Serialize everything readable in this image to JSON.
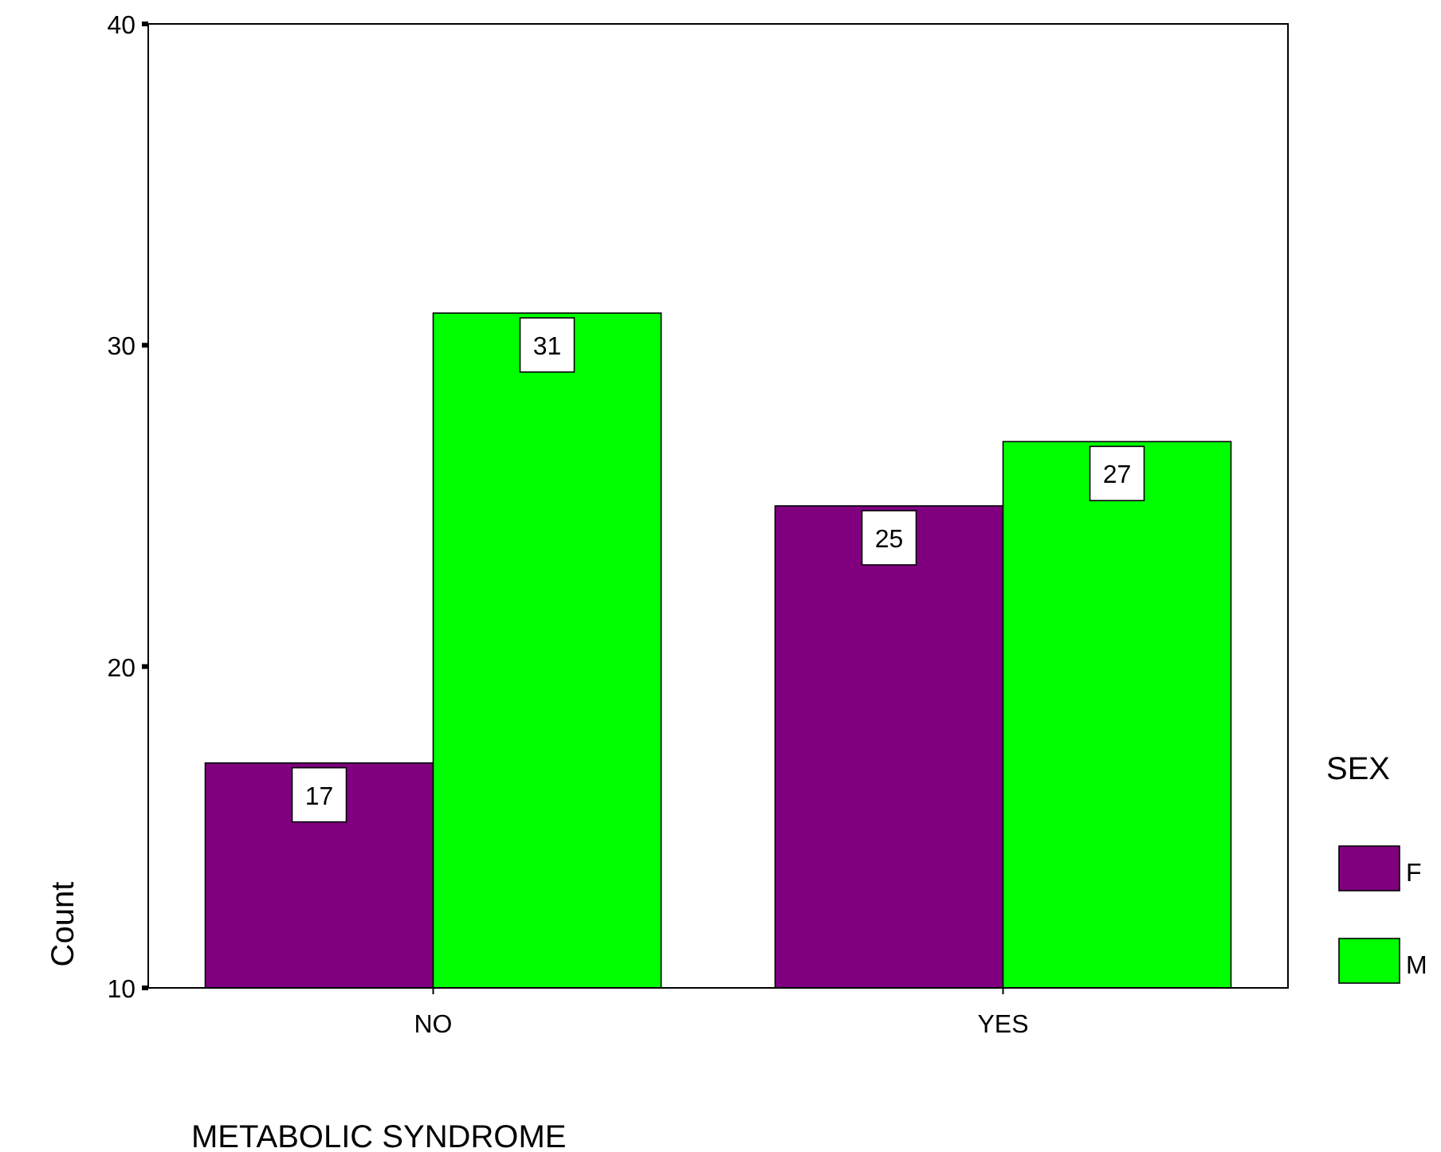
{
  "chart_data": {
    "type": "bar",
    "xlabel": "METABOLIC SYNDROME",
    "ylabel": "Count",
    "legend_title": "SEX",
    "categories": [
      "NO",
      "YES"
    ],
    "series": [
      {
        "name": "F",
        "color": "#800080",
        "values": [
          17,
          25
        ]
      },
      {
        "name": "M",
        "color": "#00ff00",
        "values": [
          31,
          27
        ]
      }
    ],
    "ylim": [
      10,
      40
    ],
    "yticks": [
      10,
      20,
      30,
      40
    ],
    "data_labels": true,
    "legend": "right",
    "grid": false
  }
}
